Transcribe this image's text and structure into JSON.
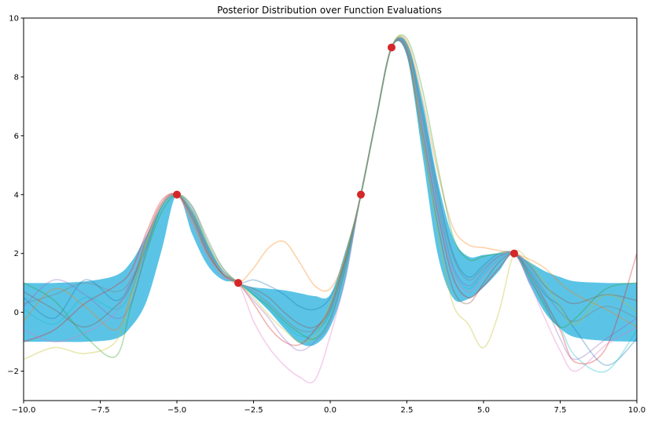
{
  "chart_data": {
    "type": "line",
    "title": "Posterior Distribution over Function Evaluations",
    "xlabel": "",
    "ylabel": "",
    "xlim": [
      -10,
      10
    ],
    "ylim": [
      -3,
      10
    ],
    "grid": false,
    "xticks": [
      -10.0,
      -7.5,
      -5.0,
      -2.5,
      0.0,
      2.5,
      5.0,
      7.5,
      10.0
    ],
    "xtick_labels": [
      "−10.0",
      "−7.5",
      "−5.0",
      "−2.5",
      "0.0",
      "2.5",
      "5.0",
      "7.5",
      "10.0"
    ],
    "yticks": [
      -2,
      0,
      2,
      4,
      6,
      8,
      10
    ],
    "ytick_labels": [
      "−2",
      "0",
      "2",
      "4",
      "6",
      "8",
      "10"
    ],
    "observations": {
      "color": "#d62728",
      "x": [
        -5,
        -3,
        1,
        2,
        6
      ],
      "y": [
        4,
        1,
        4,
        9,
        2
      ]
    },
    "confidence_band": {
      "color": "#5bc4e6",
      "x": [
        -10,
        -9,
        -8,
        -7,
        -6.5,
        -6,
        -5.5,
        -5,
        -4.5,
        -4,
        -3.5,
        -3,
        -2.5,
        -2,
        -1.5,
        -1,
        -0.5,
        0,
        0.5,
        1,
        1.5,
        2,
        2.5,
        3,
        3.5,
        4,
        4.5,
        5,
        5.5,
        6,
        6.5,
        7,
        7.5,
        8,
        9,
        10
      ],
      "upper": [
        1.0,
        1.0,
        1.05,
        1.25,
        1.7,
        2.6,
        3.6,
        4.0,
        3.45,
        2.3,
        1.35,
        1.0,
        0.85,
        0.8,
        0.75,
        0.65,
        0.55,
        0.6,
        2.1,
        4.0,
        6.6,
        9.0,
        9.15,
        7.2,
        4.5,
        2.55,
        1.9,
        1.95,
        2.0,
        2.0,
        1.7,
        1.4,
        1.2,
        1.05,
        1.0,
        1.0
      ],
      "lower": [
        -1.0,
        -1.0,
        -1.0,
        -0.9,
        -0.5,
        0.35,
        2.1,
        4.0,
        2.65,
        1.6,
        1.1,
        1.0,
        0.55,
        0.05,
        -0.55,
        -1.05,
        -1.1,
        -0.5,
        1.1,
        4.0,
        6.6,
        9.0,
        8.7,
        5.4,
        2.0,
        0.5,
        0.45,
        0.85,
        1.4,
        2.0,
        0.95,
        0.0,
        -0.55,
        -0.85,
        -0.97,
        -1.0
      ]
    },
    "sample_colors": [
      "#1f77b4",
      "#ff7f0e",
      "#2ca02c",
      "#d62728",
      "#9467bd",
      "#8c564b",
      "#e377c2",
      "#7f7f7f",
      "#bcbd22",
      "#17becf"
    ],
    "samples": [
      {
        "color": "#1f77b4",
        "y": [
          0.5,
          -0.2,
          1.1,
          0.4,
          1.0,
          2.2,
          3.6,
          4.0,
          3.4,
          2.2,
          1.4,
          1.0,
          1.1,
          0.9,
          0.6,
          0.2,
          0.1,
          0.5,
          1.8,
          4.0,
          6.6,
          9.0,
          9.1,
          6.9,
          4.2,
          2.0,
          1.2,
          1.6,
          2.0,
          2.0,
          1.4,
          0.6,
          0.2,
          -0.6,
          -1.8,
          -0.9
        ]
      },
      {
        "color": "#ff7f0e",
        "y": [
          -0.3,
          0.8,
          0.2,
          -0.6,
          0.6,
          2.4,
          3.7,
          4.0,
          3.1,
          2.0,
          1.3,
          1.0,
          1.5,
          2.2,
          2.4,
          1.7,
          0.9,
          0.8,
          1.9,
          4.0,
          6.6,
          9.0,
          9.2,
          7.3,
          4.8,
          2.9,
          2.3,
          2.2,
          2.1,
          2.0,
          1.8,
          1.5,
          1.0,
          0.6,
          0.1,
          -0.5
        ]
      },
      {
        "color": "#2ca02c",
        "y": [
          1.0,
          0.4,
          -0.8,
          -1.5,
          0.2,
          2.0,
          3.4,
          4.0,
          3.6,
          2.4,
          1.5,
          1.0,
          0.6,
          0.2,
          -0.3,
          -0.7,
          -0.9,
          -0.2,
          1.5,
          4.0,
          6.6,
          9.0,
          9.3,
          7.6,
          5.0,
          2.6,
          1.8,
          1.9,
          2.0,
          2.0,
          1.2,
          0.2,
          -0.5,
          -0.2,
          0.8,
          1.0
        ]
      },
      {
        "color": "#d62728",
        "y": [
          -1.0,
          -0.6,
          0.3,
          0.9,
          1.4,
          2.7,
          3.8,
          4.0,
          3.3,
          2.1,
          1.3,
          1.0,
          0.3,
          -0.5,
          -1.0,
          -1.1,
          -0.6,
          0.2,
          1.9,
          4.0,
          6.6,
          9.0,
          8.9,
          6.2,
          3.4,
          1.2,
          0.5,
          0.9,
          1.5,
          2.0,
          1.3,
          0.4,
          -0.6,
          -1.7,
          -1.2,
          2.0
        ]
      },
      {
        "color": "#9467bd",
        "y": [
          0.2,
          1.1,
          0.6,
          -0.2,
          0.3,
          2.1,
          3.6,
          4.0,
          3.5,
          2.3,
          1.4,
          1.0,
          0.4,
          -0.2,
          -0.9,
          -1.3,
          -1.0,
          -0.3,
          1.6,
          4.0,
          6.6,
          9.0,
          9.0,
          6.6,
          3.8,
          1.6,
          0.9,
          1.4,
          1.9,
          2.0,
          1.1,
          0.3,
          -0.9,
          -1.6,
          -0.9,
          -0.2
        ]
      },
      {
        "color": "#8c564b",
        "y": [
          0.7,
          0.1,
          -0.5,
          0.2,
          0.9,
          2.5,
          3.7,
          4.0,
          3.2,
          2.0,
          1.3,
          1.0,
          0.8,
          0.5,
          0.0,
          -0.4,
          -0.5,
          0.1,
          1.8,
          4.0,
          6.6,
          9.0,
          8.8,
          5.9,
          3.0,
          0.8,
          0.3,
          1.0,
          1.7,
          2.0,
          1.6,
          0.9,
          0.5,
          0.3,
          0.6,
          0.4
        ]
      },
      {
        "color": "#e377c2",
        "y": [
          -0.6,
          -1.0,
          -0.7,
          0.0,
          1.2,
          2.6,
          3.7,
          4.0,
          3.0,
          1.9,
          1.2,
          1.0,
          -0.3,
          -1.2,
          -1.8,
          -2.2,
          -2.3,
          -0.8,
          1.2,
          4.0,
          6.6,
          9.0,
          9.0,
          6.4,
          3.6,
          1.4,
          0.7,
          1.2,
          1.8,
          2.0,
          1.0,
          -0.2,
          -1.3,
          -2.0,
          -1.1,
          -0.5
        ]
      },
      {
        "color": "#7f7f7f",
        "y": [
          0.3,
          0.6,
          1.0,
          0.7,
          1.1,
          2.3,
          3.6,
          4.0,
          3.6,
          2.5,
          1.5,
          1.0,
          0.7,
          0.3,
          -0.2,
          -0.6,
          -0.6,
          0.0,
          1.7,
          4.0,
          6.6,
          9.0,
          9.0,
          6.7,
          4.0,
          1.9,
          1.1,
          1.5,
          1.9,
          2.0,
          1.5,
          0.7,
          0.0,
          -0.3,
          0.2,
          -0.2
        ]
      },
      {
        "color": "#bcbd22",
        "y": [
          -1.6,
          -1.2,
          -1.4,
          -1.0,
          0.5,
          2.3,
          3.6,
          4.0,
          3.4,
          2.3,
          1.4,
          1.0,
          0.5,
          -0.1,
          -0.6,
          -1.0,
          -0.8,
          0.3,
          1.9,
          4.0,
          6.6,
          9.0,
          9.1,
          6.0,
          2.8,
          0.3,
          -0.4,
          -1.2,
          0.0,
          2.0,
          1.7,
          1.0,
          0.2,
          -0.4,
          0.6,
          0.0
        ]
      },
      {
        "color": "#17becf",
        "y": [
          0.1,
          -0.4,
          0.5,
          0.1,
          0.7,
          2.2,
          3.6,
          4.0,
          3.5,
          2.3,
          1.4,
          1.0,
          0.6,
          0.1,
          -0.4,
          -0.8,
          -0.7,
          0.0,
          1.7,
          4.0,
          6.6,
          9.0,
          9.0,
          6.5,
          3.7,
          1.5,
          0.8,
          1.3,
          1.8,
          2.0,
          1.2,
          0.3,
          -0.5,
          -1.5,
          -2.0,
          -0.6
        ]
      }
    ]
  }
}
